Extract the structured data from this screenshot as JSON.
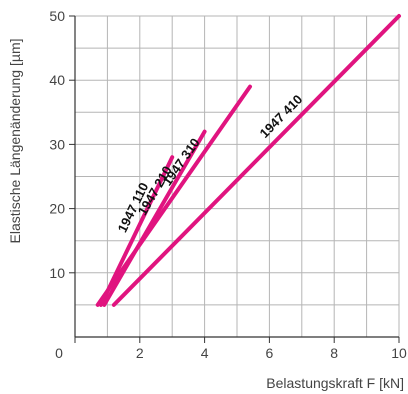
{
  "chart_data": {
    "type": "line",
    "xlabel": "Belastungskraft F [kN]",
    "ylabel": "Elastische Längenänderung [µm]",
    "xlim": [
      0,
      10
    ],
    "ylim": [
      0,
      50
    ],
    "x_ticks": [
      "0",
      "2",
      "4",
      "6",
      "8",
      "10"
    ],
    "y_ticks": [
      "10",
      "20",
      "30",
      "40",
      "50"
    ],
    "grid": true,
    "legend": "none",
    "line_color": "#e0147f",
    "series": [
      {
        "name": "1947 110",
        "x": [
          0.8,
          3.0
        ],
        "y": [
          5,
          28
        ]
      },
      {
        "name": "1947 210",
        "x": [
          0.9,
          4.0
        ],
        "y": [
          5,
          32
        ]
      },
      {
        "name": "1947 310",
        "x": [
          0.7,
          5.4
        ],
        "y": [
          5,
          39
        ]
      },
      {
        "name": "1947 410",
        "x": [
          1.2,
          10.0
        ],
        "y": [
          5,
          50
        ]
      }
    ]
  }
}
